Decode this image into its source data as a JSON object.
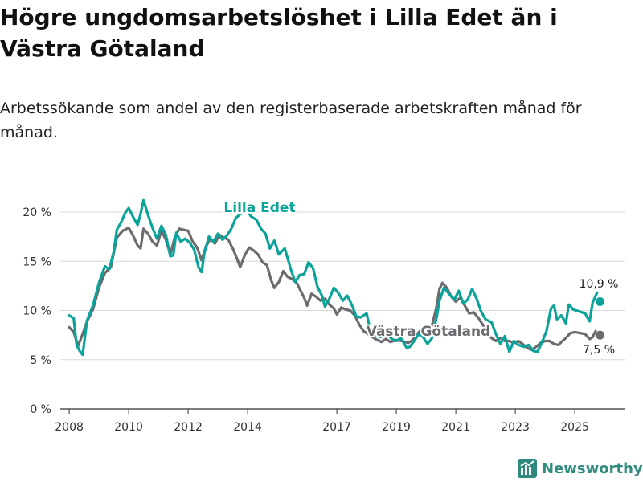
{
  "title": "Högre ungdomsarbetslöshet i Lilla Edet än i Västra Götaland",
  "subtitle": "Arbetssökande som andel av den registerbaserade arbetskraften månad för månad.",
  "brand": {
    "name": "Newsworthy",
    "icon": "newsworthy-logo-icon"
  },
  "colors": {
    "lilla_edet": "#0aa39a",
    "vastra_gotaland": "#6b6b70",
    "grid": "#d9d9d9",
    "text": "#333333"
  },
  "chart_data": {
    "type": "line",
    "title": "Högre ungdomsarbetslöshet i Lilla Edet än i Västra Götaland",
    "xlabel": "",
    "ylabel": "",
    "xlim": [
      2007.7,
      2026.7
    ],
    "ylim": [
      0,
      20
    ],
    "y_ticks": [
      0,
      5,
      10,
      15,
      20
    ],
    "y_tick_labels": [
      "0 %",
      "5 %",
      "10 %",
      "15 %",
      "20 %"
    ],
    "x_ticks": [
      2008,
      2010,
      2012,
      2014,
      2017,
      2019,
      2021,
      2023,
      2025
    ],
    "x_tick_labels": [
      "2008",
      "2010",
      "2012",
      "2014",
      "2017",
      "2019",
      "2021",
      "2023",
      "2025"
    ],
    "legend": "inline labels",
    "series": [
      {
        "name": "Lilla Edet",
        "color": "#0aa39a",
        "label": "Lilla Edet",
        "end_label": "10,9 %",
        "points": [
          [
            2008.0,
            9.5
          ],
          [
            2008.15,
            9.2
          ],
          [
            2008.25,
            6.5
          ],
          [
            2008.35,
            5.9
          ],
          [
            2008.45,
            5.5
          ],
          [
            2008.6,
            9.0
          ],
          [
            2008.8,
            10.5
          ],
          [
            2009.0,
            12.8
          ],
          [
            2009.2,
            14.5
          ],
          [
            2009.35,
            14.2
          ],
          [
            2009.5,
            16.0
          ],
          [
            2009.6,
            18.2
          ],
          [
            2009.75,
            19.0
          ],
          [
            2009.9,
            20.0
          ],
          [
            2010.0,
            20.4
          ],
          [
            2010.15,
            19.5
          ],
          [
            2010.3,
            18.7
          ],
          [
            2010.4,
            19.8
          ],
          [
            2010.5,
            21.2
          ],
          [
            2010.65,
            19.7
          ],
          [
            2010.8,
            18.4
          ],
          [
            2010.95,
            17.3
          ],
          [
            2011.1,
            18.6
          ],
          [
            2011.25,
            17.7
          ],
          [
            2011.4,
            15.5
          ],
          [
            2011.5,
            15.6
          ],
          [
            2011.6,
            17.9
          ],
          [
            2011.75,
            17.0
          ],
          [
            2011.9,
            17.3
          ],
          [
            2012.05,
            16.9
          ],
          [
            2012.2,
            16.2
          ],
          [
            2012.35,
            14.4
          ],
          [
            2012.45,
            13.9
          ],
          [
            2012.55,
            15.9
          ],
          [
            2012.7,
            17.5
          ],
          [
            2012.85,
            17.0
          ],
          [
            2013.0,
            17.8
          ],
          [
            2013.15,
            17.2
          ],
          [
            2013.3,
            17.6
          ],
          [
            2013.45,
            18.3
          ],
          [
            2013.6,
            19.4
          ],
          [
            2013.8,
            19.9
          ],
          [
            2013.95,
            20.4
          ],
          [
            2014.1,
            19.6
          ],
          [
            2014.3,
            19.2
          ],
          [
            2014.45,
            18.3
          ],
          [
            2014.6,
            17.8
          ],
          [
            2014.75,
            16.3
          ],
          [
            2014.9,
            17.1
          ],
          [
            2015.05,
            15.7
          ],
          [
            2015.25,
            16.3
          ],
          [
            2015.45,
            14.2
          ],
          [
            2015.6,
            12.9
          ],
          [
            2015.75,
            13.6
          ],
          [
            2015.9,
            13.7
          ],
          [
            2016.05,
            14.9
          ],
          [
            2016.2,
            14.3
          ],
          [
            2016.35,
            12.4
          ],
          [
            2016.5,
            11.5
          ],
          [
            2016.6,
            10.4
          ],
          [
            2016.75,
            11.2
          ],
          [
            2016.9,
            12.3
          ],
          [
            2017.05,
            11.8
          ],
          [
            2017.2,
            11.0
          ],
          [
            2017.35,
            11.5
          ],
          [
            2017.5,
            10.6
          ],
          [
            2017.65,
            9.4
          ],
          [
            2017.8,
            9.3
          ],
          [
            2018.0,
            9.7
          ],
          [
            2018.1,
            8.3
          ],
          [
            2018.25,
            7.6
          ],
          [
            2018.45,
            7.3
          ],
          [
            2018.7,
            7.6
          ],
          [
            2018.85,
            7.1
          ],
          [
            2019.0,
            6.9
          ],
          [
            2019.15,
            7.2
          ],
          [
            2019.35,
            6.2
          ],
          [
            2019.45,
            6.3
          ],
          [
            2019.6,
            6.9
          ],
          [
            2019.75,
            7.6
          ],
          [
            2019.9,
            7.3
          ],
          [
            2020.05,
            6.6
          ],
          [
            2020.2,
            7.2
          ],
          [
            2020.35,
            9.2
          ],
          [
            2020.45,
            11.0
          ],
          [
            2020.6,
            12.3
          ],
          [
            2020.8,
            11.6
          ],
          [
            2020.95,
            11.1
          ],
          [
            2021.1,
            12.0
          ],
          [
            2021.25,
            10.7
          ],
          [
            2021.4,
            11.1
          ],
          [
            2021.55,
            12.2
          ],
          [
            2021.7,
            11.2
          ],
          [
            2021.85,
            9.9
          ],
          [
            2022.0,
            9.1
          ],
          [
            2022.2,
            8.8
          ],
          [
            2022.35,
            7.6
          ],
          [
            2022.5,
            6.6
          ],
          [
            2022.65,
            7.4
          ],
          [
            2022.8,
            5.8
          ],
          [
            2022.95,
            6.9
          ],
          [
            2023.1,
            6.5
          ],
          [
            2023.3,
            6.3
          ],
          [
            2023.45,
            6.5
          ],
          [
            2023.6,
            5.9
          ],
          [
            2023.75,
            5.8
          ],
          [
            2023.9,
            6.8
          ],
          [
            2024.05,
            7.9
          ],
          [
            2024.2,
            10.2
          ],
          [
            2024.3,
            10.5
          ],
          [
            2024.4,
            9.1
          ],
          [
            2024.55,
            9.5
          ],
          [
            2024.7,
            8.7
          ],
          [
            2024.8,
            10.6
          ],
          [
            2024.95,
            10.1
          ],
          [
            2025.15,
            9.9
          ],
          [
            2025.35,
            9.7
          ],
          [
            2025.5,
            8.9
          ],
          [
            2025.6,
            10.8
          ],
          [
            2025.75,
            11.8
          ]
        ],
        "end_point": [
          2025.85,
          10.9
        ]
      },
      {
        "name": "Västra Götaland",
        "color": "#6b6b70",
        "label": "Västra Götaland",
        "end_label": "7,5 %",
        "points": [
          [
            2008.0,
            8.3
          ],
          [
            2008.15,
            7.8
          ],
          [
            2008.3,
            6.4
          ],
          [
            2008.45,
            7.6
          ],
          [
            2008.6,
            8.9
          ],
          [
            2008.8,
            10.1
          ],
          [
            2009.0,
            12.3
          ],
          [
            2009.2,
            13.8
          ],
          [
            2009.4,
            14.4
          ],
          [
            2009.6,
            17.4
          ],
          [
            2009.8,
            18.1
          ],
          [
            2010.0,
            18.4
          ],
          [
            2010.15,
            17.6
          ],
          [
            2010.3,
            16.6
          ],
          [
            2010.4,
            16.3
          ],
          [
            2010.5,
            18.3
          ],
          [
            2010.65,
            17.8
          ],
          [
            2010.8,
            17.0
          ],
          [
            2010.95,
            16.6
          ],
          [
            2011.1,
            18.1
          ],
          [
            2011.25,
            17.2
          ],
          [
            2011.4,
            15.7
          ],
          [
            2011.55,
            17.4
          ],
          [
            2011.7,
            18.3
          ],
          [
            2011.85,
            18.2
          ],
          [
            2012.0,
            18.1
          ],
          [
            2012.15,
            17.0
          ],
          [
            2012.3,
            16.4
          ],
          [
            2012.45,
            15.1
          ],
          [
            2012.6,
            16.5
          ],
          [
            2012.75,
            17.3
          ],
          [
            2012.9,
            16.8
          ],
          [
            2013.05,
            17.7
          ],
          [
            2013.2,
            17.4
          ],
          [
            2013.35,
            17.2
          ],
          [
            2013.5,
            16.3
          ],
          [
            2013.65,
            15.2
          ],
          [
            2013.75,
            14.4
          ],
          [
            2013.9,
            15.6
          ],
          [
            2014.05,
            16.4
          ],
          [
            2014.2,
            16.1
          ],
          [
            2014.35,
            15.7
          ],
          [
            2014.5,
            14.9
          ],
          [
            2014.65,
            14.6
          ],
          [
            2014.8,
            13.0
          ],
          [
            2014.9,
            12.3
          ],
          [
            2015.05,
            12.9
          ],
          [
            2015.2,
            14.0
          ],
          [
            2015.35,
            13.4
          ],
          [
            2015.5,
            13.2
          ],
          [
            2015.65,
            12.8
          ],
          [
            2015.8,
            11.9
          ],
          [
            2015.9,
            11.3
          ],
          [
            2016.0,
            10.5
          ],
          [
            2016.15,
            11.7
          ],
          [
            2016.3,
            11.4
          ],
          [
            2016.45,
            11.0
          ],
          [
            2016.6,
            11.2
          ],
          [
            2016.75,
            10.6
          ],
          [
            2016.9,
            10.2
          ],
          [
            2017.0,
            9.6
          ],
          [
            2017.15,
            10.3
          ],
          [
            2017.3,
            10.1
          ],
          [
            2017.45,
            10.0
          ],
          [
            2017.6,
            9.5
          ],
          [
            2017.75,
            8.6
          ],
          [
            2017.9,
            7.9
          ],
          [
            2018.1,
            7.5
          ],
          [
            2018.3,
            7.1
          ],
          [
            2018.5,
            6.8
          ],
          [
            2018.65,
            7.1
          ],
          [
            2018.8,
            6.8
          ],
          [
            2019.0,
            7.0
          ],
          [
            2019.2,
            6.9
          ],
          [
            2019.4,
            6.7
          ],
          [
            2019.55,
            7.0
          ],
          [
            2019.7,
            7.6
          ],
          [
            2019.85,
            8.1
          ],
          [
            2020.0,
            7.8
          ],
          [
            2020.2,
            8.5
          ],
          [
            2020.35,
            10.3
          ],
          [
            2020.45,
            12.2
          ],
          [
            2020.55,
            12.8
          ],
          [
            2020.7,
            12.3
          ],
          [
            2020.85,
            11.4
          ],
          [
            2021.0,
            10.9
          ],
          [
            2021.15,
            11.3
          ],
          [
            2021.3,
            10.5
          ],
          [
            2021.45,
            9.7
          ],
          [
            2021.6,
            9.8
          ],
          [
            2021.75,
            9.3
          ],
          [
            2021.9,
            8.6
          ],
          [
            2022.05,
            7.8
          ],
          [
            2022.2,
            7.2
          ],
          [
            2022.35,
            6.9
          ],
          [
            2022.5,
            7.2
          ],
          [
            2022.65,
            6.9
          ],
          [
            2022.8,
            6.9
          ],
          [
            2022.95,
            6.7
          ],
          [
            2023.1,
            6.9
          ],
          [
            2023.25,
            6.6
          ],
          [
            2023.4,
            6.2
          ],
          [
            2023.55,
            6.0
          ],
          [
            2023.7,
            6.3
          ],
          [
            2023.85,
            6.7
          ],
          [
            2024.0,
            6.9
          ],
          [
            2024.15,
            6.9
          ],
          [
            2024.3,
            6.6
          ],
          [
            2024.45,
            6.5
          ],
          [
            2024.55,
            6.8
          ],
          [
            2024.7,
            7.2
          ],
          [
            2024.85,
            7.7
          ],
          [
            2025.0,
            7.8
          ],
          [
            2025.2,
            7.7
          ],
          [
            2025.35,
            7.6
          ],
          [
            2025.5,
            7.1
          ],
          [
            2025.6,
            7.3
          ],
          [
            2025.7,
            7.9
          ]
        ],
        "end_point": [
          2025.85,
          7.5
        ]
      }
    ]
  }
}
